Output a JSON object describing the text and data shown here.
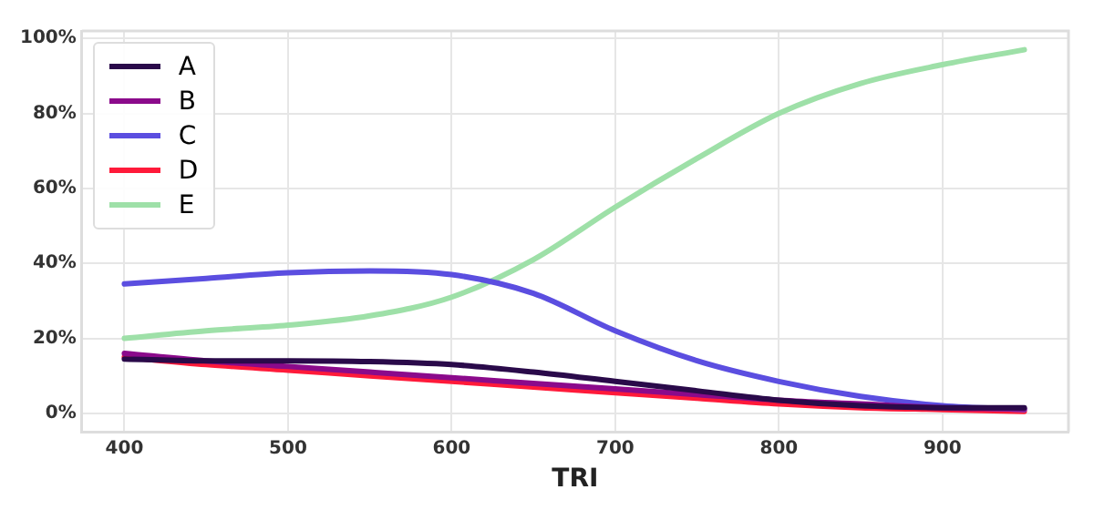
{
  "chart_data": {
    "type": "line",
    "xlabel": "TRI",
    "x": [
      400,
      450,
      500,
      550,
      600,
      650,
      700,
      750,
      800,
      850,
      900,
      950
    ],
    "series": [
      {
        "name": "A",
        "color": "#2a0a4a",
        "values": [
          14.5,
          14,
          14,
          13.8,
          13,
          11,
          8.5,
          6,
          3.5,
          2,
          1.5,
          1.5
        ]
      },
      {
        "name": "B",
        "color": "#8b0a8b",
        "values": [
          16,
          14,
          12.5,
          11,
          9.5,
          8,
          6.5,
          5,
          3.5,
          2.5,
          1.5,
          1.2
        ]
      },
      {
        "name": "C",
        "color": "#5b4ee0",
        "values": [
          34.5,
          36,
          37.5,
          38,
          37,
          32,
          22,
          14,
          8.5,
          4.5,
          2,
          1
        ]
      },
      {
        "name": "D",
        "color": "#ff1a3a",
        "values": [
          15,
          13,
          11.5,
          10,
          8.5,
          7,
          5.5,
          4,
          2.5,
          1.5,
          1,
          0.5
        ]
      },
      {
        "name": "E",
        "color": "#9ee0a8",
        "values": [
          20,
          22,
          23.5,
          26,
          31,
          41,
          55,
          68,
          80,
          88,
          93,
          97
        ]
      }
    ],
    "xlim": [
      374,
      977
    ],
    "xticks": [
      400,
      500,
      600,
      700,
      800,
      900
    ],
    "ylim": [
      -5,
      102
    ],
    "yticks": [
      {
        "value": 0,
        "label": "0%"
      },
      {
        "value": 20,
        "label": "20%"
      },
      {
        "value": 40,
        "label": "40%"
      },
      {
        "value": 60,
        "label": "60%"
      },
      {
        "value": 80,
        "label": "80%"
      },
      {
        "value": 100,
        "label": "100%"
      }
    ],
    "grid": true,
    "legend": "top left",
    "line_style": "solid",
    "marker": "none"
  }
}
